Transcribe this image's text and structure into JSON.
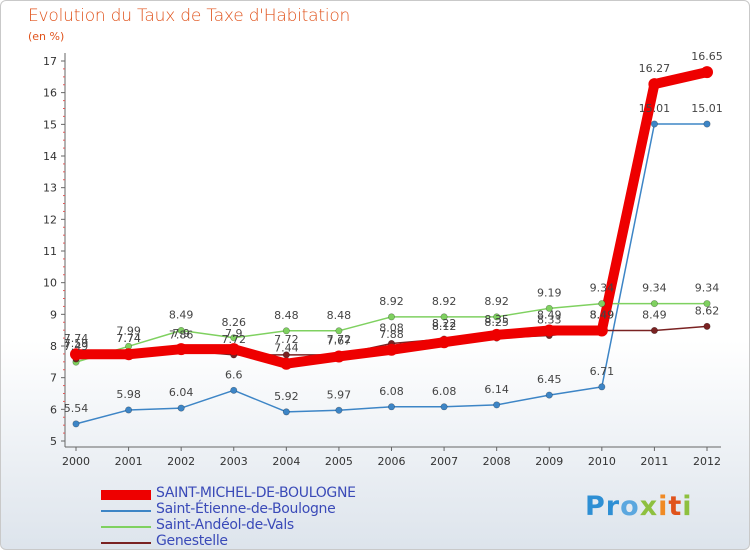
{
  "header": {
    "title": "Evolution du Taux de Taxe d'Habitation",
    "unit": "(en %)"
  },
  "logo": {
    "text": "Proxiti"
  },
  "chart_data": {
    "type": "line",
    "title": "Evolution du Taux de Taxe d'Habitation",
    "ylabel": "(en %)",
    "xlabel": "",
    "x": [
      "2000",
      "2001",
      "2002",
      "2003",
      "2004",
      "2005",
      "2006",
      "2007",
      "2008",
      "2009",
      "2010",
      "2011",
      "2012"
    ],
    "ylim": [
      5,
      17
    ],
    "yticks": [
      5,
      6,
      7,
      8,
      9,
      10,
      11,
      12,
      13,
      14,
      15,
      16,
      17
    ],
    "grid": false,
    "legend": "bottom-left",
    "series": [
      {
        "name": "SAINT-MICHEL-DE-BOULOGNE",
        "color": "#ee0000",
        "values": [
          7.74,
          7.74,
          7.9,
          7.9,
          7.44,
          7.67,
          7.88,
          8.12,
          8.35,
          8.49,
          8.49,
          16.27,
          16.65
        ],
        "labels": [
          "7.74",
          "7.74",
          "7.9",
          "7.9",
          "7.44",
          "7.67",
          "7.88",
          "8.12",
          "8.35",
          "8.49",
          "8.49",
          "16.27",
          "16.65"
        ],
        "show_labels": true
      },
      {
        "name": "Saint-Étienne-de-Boulogne",
        "color": "#3d85c6",
        "values": [
          5.54,
          5.98,
          6.04,
          6.6,
          5.92,
          5.97,
          6.08,
          6.08,
          6.14,
          6.45,
          6.71,
          15.01,
          15.01
        ],
        "labels": [
          "5.54",
          "5.98",
          "6.04",
          "6.6",
          "5.92",
          "5.97",
          "6.08",
          "6.08",
          "6.14",
          "6.45",
          "6.71",
          "15.01",
          "15.01"
        ],
        "show_labels": true
      },
      {
        "name": "Saint-Andéol-de-Vals",
        "color": "#7fd160",
        "values": [
          7.49,
          7.99,
          8.49,
          8.26,
          8.48,
          8.48,
          8.92,
          8.92,
          8.92,
          9.19,
          9.34,
          9.34,
          9.34
        ],
        "labels": [
          "7.49",
          "7.99",
          "8.49",
          "8.26",
          "8.48",
          "8.48",
          "8.92",
          "8.92",
          "8.92",
          "9.19",
          "9.34",
          "9.34",
          "9.34"
        ],
        "show_labels": true
      },
      {
        "name": "Genestelle",
        "color": "#7a2222",
        "values": [
          7.59,
          7.74,
          7.86,
          7.72,
          7.72,
          7.72,
          8.08,
          8.22,
          8.25,
          8.33,
          8.49,
          8.49,
          8.62
        ],
        "labels": [
          "7.59",
          "7.74",
          "7.86",
          "7.72",
          "7.72",
          "7.72",
          "8.08",
          "8.22",
          "8.25",
          "8.33",
          "8.49",
          "8.49",
          "8.62"
        ],
        "show_labels": true
      }
    ]
  }
}
